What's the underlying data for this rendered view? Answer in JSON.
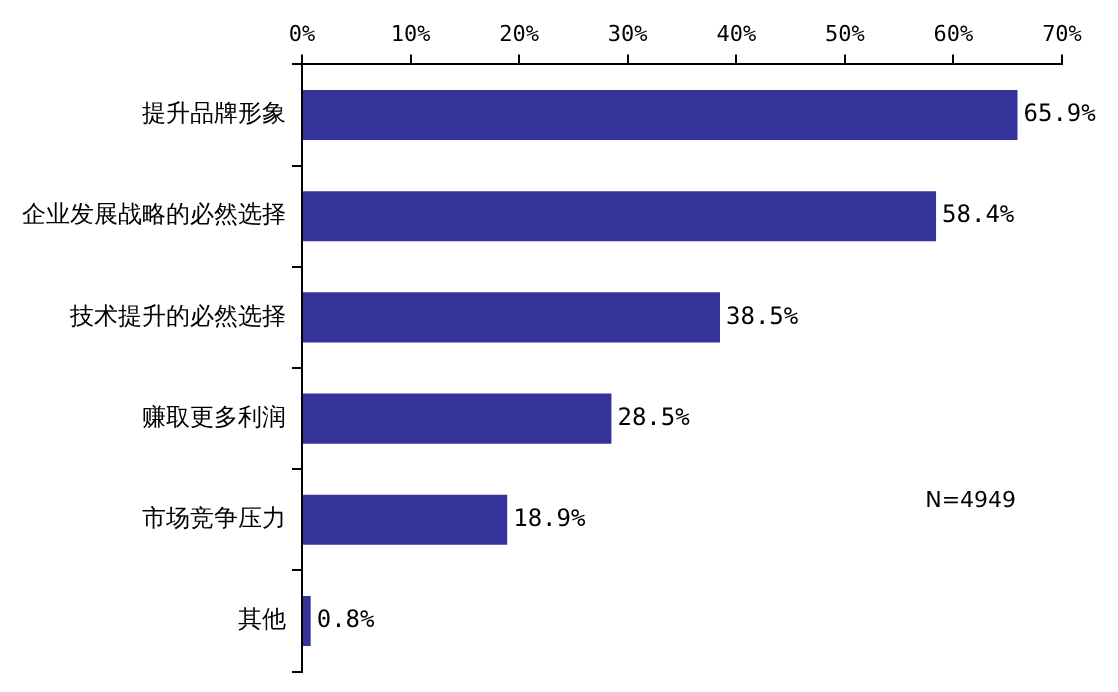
{
  "chart_data": {
    "type": "bar",
    "orientation": "horizontal",
    "categories": [
      "提升品牌形象",
      "企业发展战略的必然选择",
      "技术提升的必然选择",
      "赚取更多利润",
      "市场竞争压力",
      "其他"
    ],
    "values": [
      65.9,
      58.4,
      38.5,
      28.5,
      18.9,
      0.8
    ],
    "value_labels": [
      "65.9%",
      "58.4%",
      "38.5%",
      "28.5%",
      "18.9%",
      "0.8%"
    ],
    "color": "#333399",
    "xlim": [
      0,
      70
    ],
    "xticks": [
      {
        "value": 0,
        "label": "0%"
      },
      {
        "value": 10,
        "label": "10%"
      },
      {
        "value": 20,
        "label": "20%"
      },
      {
        "value": 30,
        "label": "30%"
      },
      {
        "value": 40,
        "label": "40%"
      },
      {
        "value": 50,
        "label": "50%"
      },
      {
        "value": 60,
        "label": "60%"
      },
      {
        "value": 70,
        "label": "70%"
      }
    ],
    "annotations": [
      "N=4949"
    ]
  }
}
